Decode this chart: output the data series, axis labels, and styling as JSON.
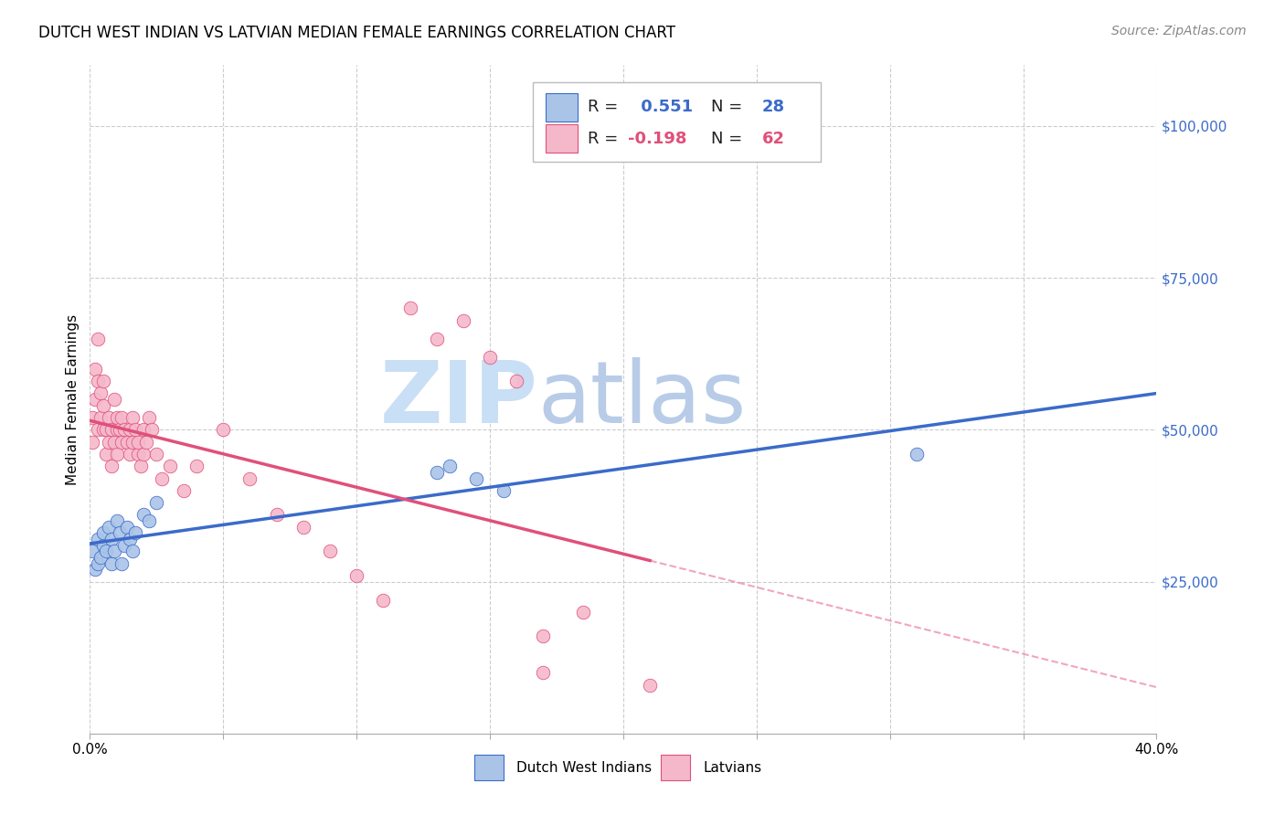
{
  "title": "DUTCH WEST INDIAN VS LATVIAN MEDIAN FEMALE EARNINGS CORRELATION CHART",
  "source": "Source: ZipAtlas.com",
  "ylabel": "Median Female Earnings",
  "xlim": [
    0.0,
    0.4
  ],
  "ylim": [
    0,
    110000
  ],
  "xticks": [
    0.0,
    0.05,
    0.1,
    0.15,
    0.2,
    0.25,
    0.3,
    0.35,
    0.4
  ],
  "ytick_positions": [
    25000,
    50000,
    75000,
    100000
  ],
  "ytick_labels": [
    "$25,000",
    "$50,000",
    "$75,000",
    "$100,000"
  ],
  "background_color": "#ffffff",
  "grid_color": "#cccccc",
  "blue_scatter_x": [
    0.001,
    0.002,
    0.003,
    0.003,
    0.004,
    0.005,
    0.005,
    0.006,
    0.007,
    0.008,
    0.008,
    0.009,
    0.01,
    0.011,
    0.012,
    0.013,
    0.014,
    0.015,
    0.016,
    0.017,
    0.02,
    0.022,
    0.025,
    0.13,
    0.135,
    0.145,
    0.155,
    0.31
  ],
  "blue_scatter_y": [
    30000,
    27000,
    28000,
    32000,
    29000,
    31000,
    33000,
    30000,
    34000,
    28000,
    32000,
    30000,
    35000,
    33000,
    28000,
    31000,
    34000,
    32000,
    30000,
    33000,
    36000,
    35000,
    38000,
    43000,
    44000,
    42000,
    40000,
    46000
  ],
  "blue_color": "#aac4e8",
  "blue_line_color": "#3b6bc9",
  "blue_R": 0.551,
  "blue_N": 28,
  "pink_scatter_x": [
    0.001,
    0.001,
    0.002,
    0.002,
    0.003,
    0.003,
    0.003,
    0.004,
    0.004,
    0.005,
    0.005,
    0.005,
    0.006,
    0.006,
    0.007,
    0.007,
    0.008,
    0.008,
    0.009,
    0.009,
    0.01,
    0.01,
    0.01,
    0.011,
    0.012,
    0.012,
    0.013,
    0.014,
    0.015,
    0.015,
    0.016,
    0.016,
    0.017,
    0.018,
    0.018,
    0.019,
    0.02,
    0.02,
    0.021,
    0.022,
    0.023,
    0.025,
    0.027,
    0.03,
    0.035,
    0.04,
    0.05,
    0.06,
    0.07,
    0.08,
    0.09,
    0.1,
    0.11,
    0.12,
    0.13,
    0.14,
    0.15,
    0.16,
    0.17,
    0.17,
    0.185,
    0.21
  ],
  "pink_scatter_y": [
    48000,
    52000,
    55000,
    60000,
    50000,
    58000,
    65000,
    52000,
    56000,
    50000,
    54000,
    58000,
    46000,
    50000,
    52000,
    48000,
    50000,
    44000,
    55000,
    48000,
    46000,
    50000,
    52000,
    50000,
    48000,
    52000,
    50000,
    48000,
    46000,
    50000,
    48000,
    52000,
    50000,
    46000,
    48000,
    44000,
    46000,
    50000,
    48000,
    52000,
    50000,
    46000,
    42000,
    44000,
    40000,
    44000,
    50000,
    42000,
    36000,
    34000,
    30000,
    26000,
    22000,
    70000,
    65000,
    68000,
    62000,
    58000,
    10000,
    16000,
    20000,
    8000
  ],
  "pink_color": "#f5b8cb",
  "pink_line_color": "#e0507a",
  "pink_R": -0.198,
  "pink_N": 62,
  "watermark_zip": "ZIP",
  "watermark_atlas": "atlas",
  "watermark_color_zip": "#c8dff5",
  "watermark_color_atlas": "#b8cce8",
  "title_fontsize": 12,
  "axis_label_fontsize": 11,
  "tick_fontsize": 11,
  "legend_fontsize": 13,
  "source_fontsize": 10
}
